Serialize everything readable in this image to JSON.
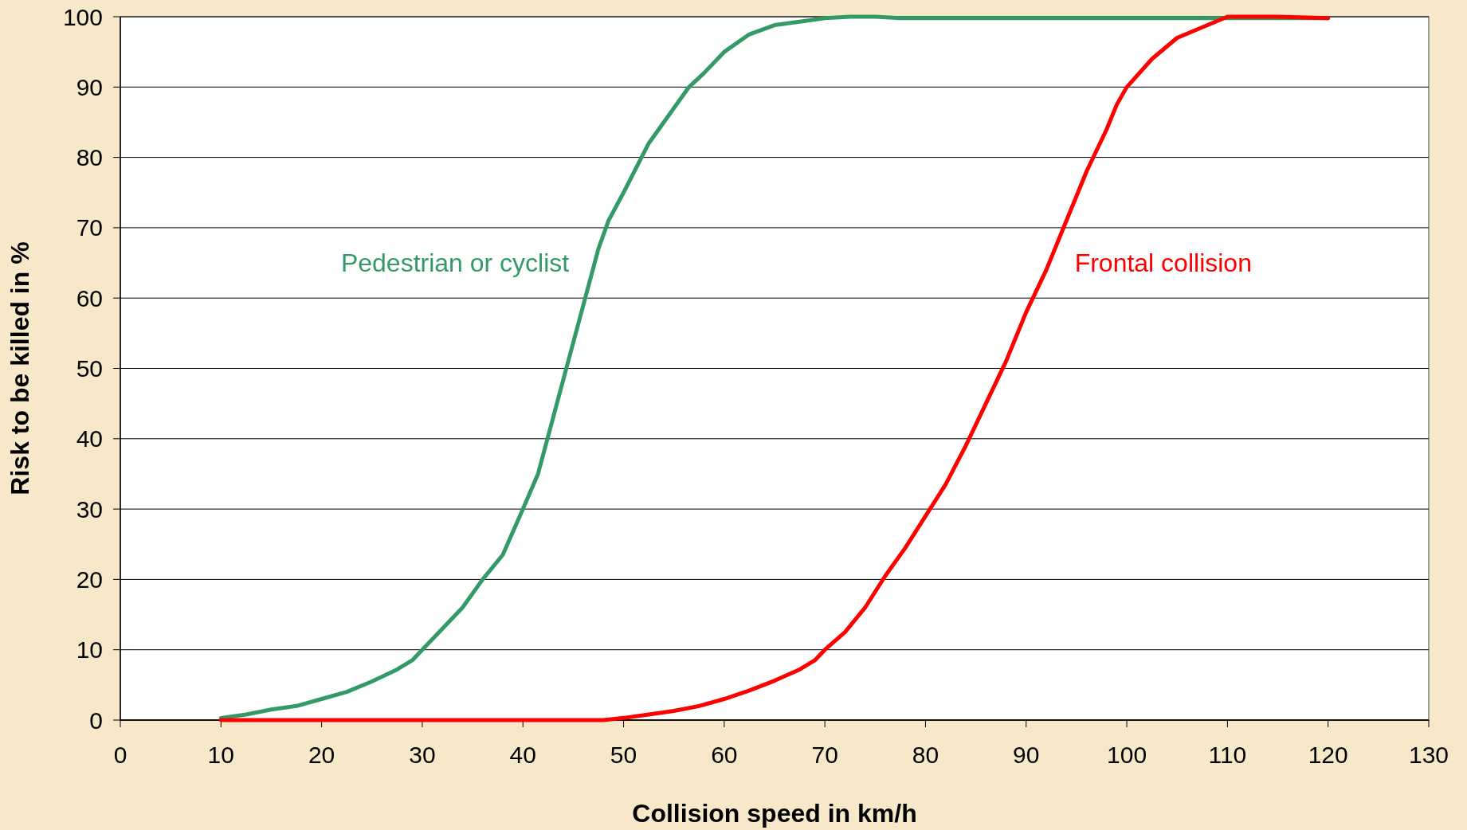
{
  "chart_data": {
    "type": "line",
    "xlabel": "Collision speed in km/h",
    "ylabel": "Risk to be killed in %",
    "xlim": [
      0,
      130
    ],
    "xticks": [
      0,
      10,
      20,
      30,
      40,
      50,
      60,
      70,
      80,
      90,
      100,
      110,
      120,
      130
    ],
    "ylim": [
      0,
      100
    ],
    "yticks": [
      0,
      10,
      20,
      30,
      40,
      50,
      60,
      70,
      80,
      90,
      100
    ],
    "grid": "y",
    "line_style": "solid",
    "marker": "none",
    "series": [
      {
        "name": "Pedestrian or cyclist",
        "color": "#339966",
        "x": [
          10,
          12.5,
          15,
          17.5,
          20,
          22.5,
          25,
          27.5,
          29,
          30,
          32,
          34,
          36,
          38,
          40,
          41.5,
          43,
          44.5,
          46,
          47.5,
          48.5,
          50,
          52.5,
          55,
          56.5,
          58,
          60,
          62.5,
          65,
          67.5,
          70,
          72.5,
          75,
          77.5,
          80,
          90,
          100,
          110,
          120
        ],
        "values": [
          0.3,
          0.8,
          1.5,
          2,
          3,
          4,
          5.5,
          7.2,
          8.5,
          10,
          13,
          16,
          20,
          23.5,
          30,
          35,
          43,
          51,
          59,
          67,
          71,
          75,
          82,
          87,
          90,
          92,
          95,
          97.5,
          98.8,
          99.3,
          99.8,
          100,
          100,
          99.8,
          99.8,
          99.8,
          99.8,
          99.8,
          99.8
        ]
      },
      {
        "name": "Frontal collision",
        "color": "#ff0000",
        "x": [
          10,
          20,
          30,
          40,
          45,
          48,
          50,
          52.5,
          55,
          57.5,
          60,
          62.5,
          65,
          67.5,
          69,
          70,
          72,
          74,
          76,
          78,
          80,
          82,
          84,
          86,
          88,
          90,
          92,
          94,
          96,
          98,
          99,
          100,
          102.5,
          105,
          107.5,
          110,
          115,
          120
        ],
        "values": [
          0,
          0,
          0,
          0,
          0,
          0,
          0.3,
          0.8,
          1.3,
          2,
          3,
          4.2,
          5.6,
          7.2,
          8.5,
          10,
          12.5,
          16,
          20.5,
          24.5,
          29,
          33.5,
          39,
          45,
          51,
          58,
          64,
          71,
          78,
          84,
          87.5,
          90,
          94,
          97,
          98.5,
          100,
          100,
          99.8
        ]
      }
    ]
  }
}
